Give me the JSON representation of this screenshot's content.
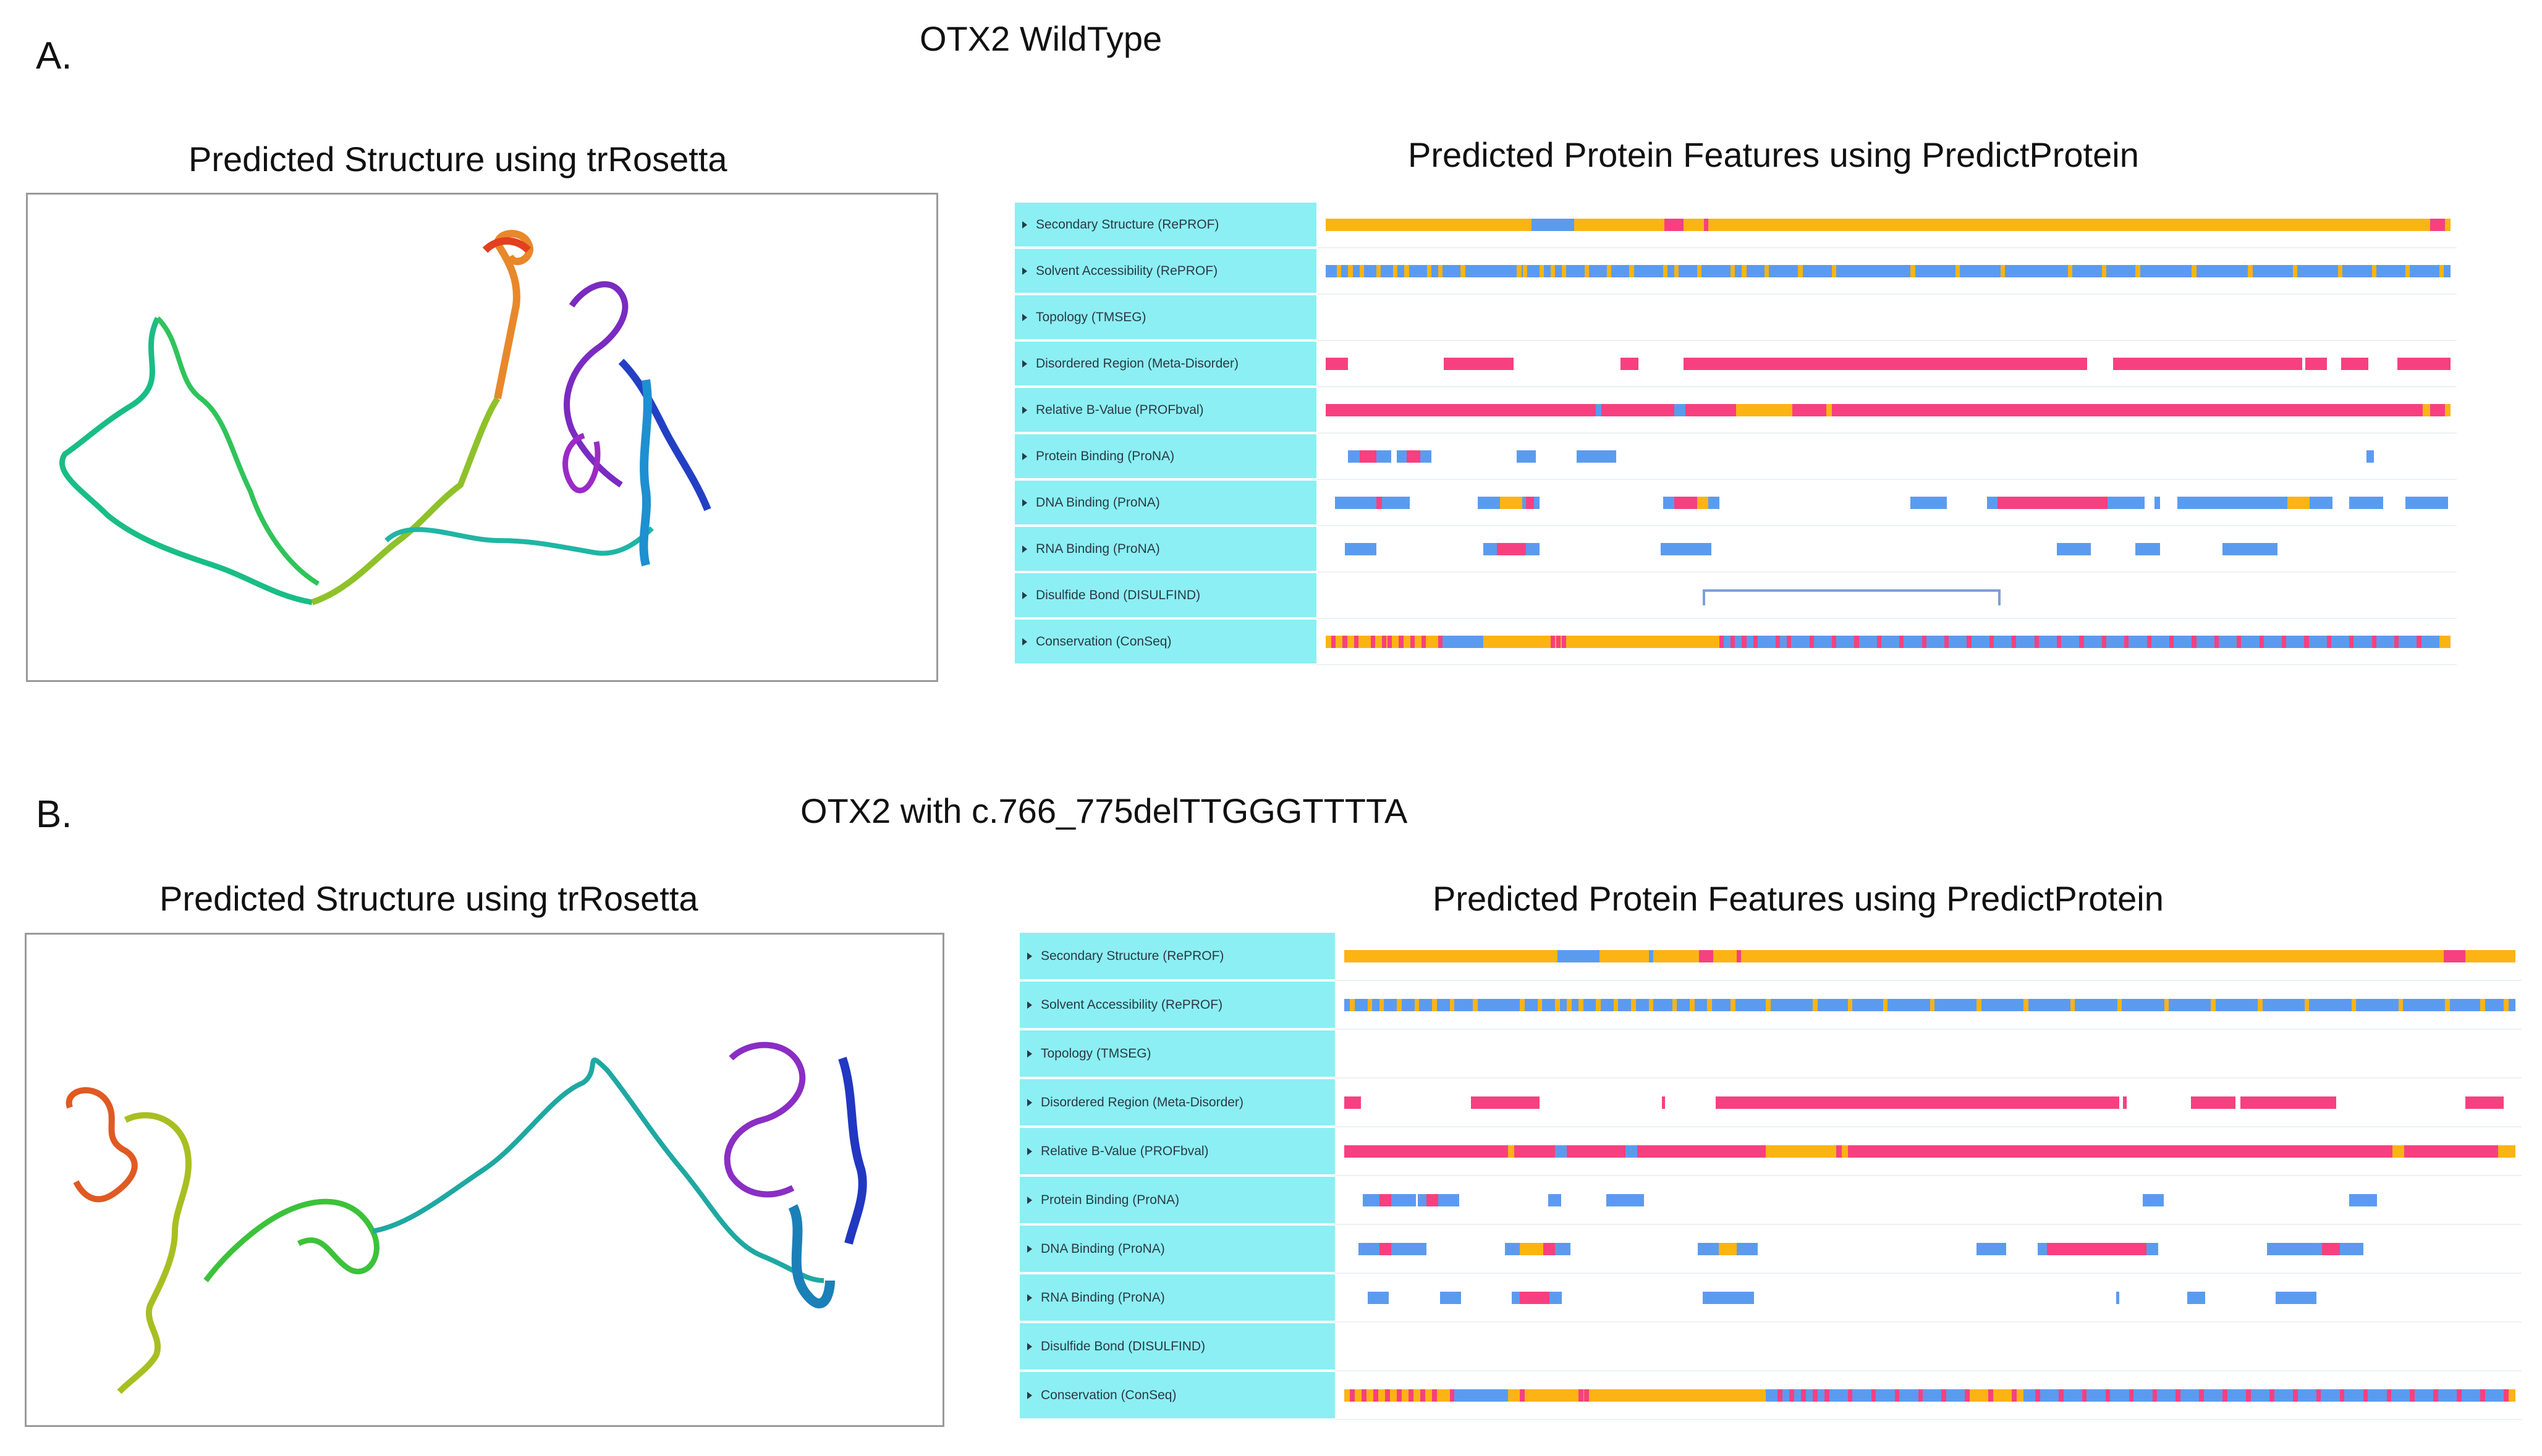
{
  "panels": [
    {
      "letter": "A.",
      "title": "OTX2 WildType",
      "structure_title": "Predicted Structure using trRosetta",
      "features_title": "Predicted Protein Features using PredictProtein",
      "tracks": [
        {
          "label": "Secondary Structure (RePROF)",
          "kind": "solid",
          "segments": [
            {
              "s": 0,
              "e": 0.183,
              "c": "orange"
            },
            {
              "s": 0.183,
              "e": 0.221,
              "c": "blue"
            },
            {
              "s": 0.221,
              "e": 0.301,
              "c": "orange"
            },
            {
              "s": 0.301,
              "e": 0.318,
              "c": "pink"
            },
            {
              "s": 0.318,
              "e": 0.336,
              "c": "orange"
            },
            {
              "s": 0.336,
              "e": 0.34,
              "c": "pink"
            },
            {
              "s": 0.34,
              "e": 0.982,
              "c": "orange"
            },
            {
              "s": 0.982,
              "e": 0.995,
              "c": "pink"
            },
            {
              "s": 0.995,
              "e": 1,
              "c": "orange"
            }
          ]
        },
        {
          "label": "Solvent Accessibility (RePROF)",
          "kind": "striped",
          "base": "blue",
          "accent": "orange",
          "stripes": [
            0.01,
            0.02,
            0.03,
            0.045,
            0.06,
            0.07,
            0.09,
            0.1,
            0.12,
            0.17,
            0.175,
            0.19,
            0.2,
            0.21,
            0.23,
            0.25,
            0.27,
            0.3,
            0.31,
            0.33,
            0.36,
            0.37,
            0.39,
            0.42,
            0.45,
            0.52,
            0.56,
            0.6,
            0.66,
            0.69,
            0.72,
            0.77,
            0.82,
            0.86,
            0.9,
            0.93,
            0.96,
            0.99
          ],
          "segments": []
        },
        {
          "label": "Topology (TMSEG)",
          "kind": "solid",
          "segments": []
        },
        {
          "label": "Disordered Region (Meta-Disorder)",
          "kind": "solid",
          "segments": [
            {
              "s": 0.0,
              "e": 0.02,
              "c": "pink"
            },
            {
              "s": 0.105,
              "e": 0.167,
              "c": "pink"
            },
            {
              "s": 0.262,
              "e": 0.278,
              "c": "pink"
            },
            {
              "s": 0.318,
              "e": 0.677,
              "c": "pink"
            },
            {
              "s": 0.7,
              "e": 0.868,
              "c": "pink"
            },
            {
              "s": 0.871,
              "e": 0.89,
              "c": "pink"
            },
            {
              "s": 0.903,
              "e": 0.927,
              "c": "pink"
            },
            {
              "s": 0.953,
              "e": 1,
              "c": "pink"
            }
          ]
        },
        {
          "label": "Relative B-Value (PROFbval)",
          "kind": "solid",
          "segments": [
            {
              "s": 0,
              "e": 0.24,
              "c": "pink"
            },
            {
              "s": 0.24,
              "e": 0.245,
              "c": "blue"
            },
            {
              "s": 0.245,
              "e": 0.31,
              "c": "pink"
            },
            {
              "s": 0.31,
              "e": 0.32,
              "c": "blue"
            },
            {
              "s": 0.32,
              "e": 0.365,
              "c": "pink"
            },
            {
              "s": 0.365,
              "e": 0.415,
              "c": "orange"
            },
            {
              "s": 0.415,
              "e": 0.445,
              "c": "pink"
            },
            {
              "s": 0.445,
              "e": 0.45,
              "c": "orange"
            },
            {
              "s": 0.45,
              "e": 0.975,
              "c": "pink"
            },
            {
              "s": 0.975,
              "e": 0.982,
              "c": "orange"
            },
            {
              "s": 0.982,
              "e": 0.995,
              "c": "pink"
            },
            {
              "s": 0.995,
              "e": 1,
              "c": "orange"
            }
          ]
        },
        {
          "label": "Protein Binding (ProNA)",
          "kind": "solid",
          "segments": [
            {
              "s": 0.02,
              "e": 0.058,
              "c": "blue"
            },
            {
              "s": 0.03,
              "e": 0.045,
              "c": "pink"
            },
            {
              "s": 0.063,
              "e": 0.094,
              "c": "blue"
            },
            {
              "s": 0.072,
              "e": 0.084,
              "c": "pink"
            },
            {
              "s": 0.17,
              "e": 0.187,
              "c": "blue"
            },
            {
              "s": 0.223,
              "e": 0.258,
              "c": "blue"
            },
            {
              "s": 0.925,
              "e": 0.932,
              "c": "blue"
            }
          ]
        },
        {
          "label": "DNA Binding (ProNA)",
          "kind": "solid",
          "segments": [
            {
              "s": 0.008,
              "e": 0.075,
              "c": "blue"
            },
            {
              "s": 0.045,
              "e": 0.05,
              "c": "pink"
            },
            {
              "s": 0.135,
              "e": 0.19,
              "c": "blue"
            },
            {
              "s": 0.155,
              "e": 0.175,
              "c": "orange"
            },
            {
              "s": 0.178,
              "e": 0.185,
              "c": "pink"
            },
            {
              "s": 0.3,
              "e": 0.35,
              "c": "blue"
            },
            {
              "s": 0.31,
              "e": 0.33,
              "c": "pink"
            },
            {
              "s": 0.33,
              "e": 0.34,
              "c": "orange"
            },
            {
              "s": 0.52,
              "e": 0.552,
              "c": "blue"
            },
            {
              "s": 0.588,
              "e": 0.728,
              "c": "blue"
            },
            {
              "s": 0.597,
              "e": 0.695,
              "c": "pink"
            },
            {
              "s": 0.737,
              "e": 0.742,
              "c": "blue"
            },
            {
              "s": 0.757,
              "e": 0.895,
              "c": "blue"
            },
            {
              "s": 0.855,
              "e": 0.875,
              "c": "orange"
            },
            {
              "s": 0.91,
              "e": 0.94,
              "c": "blue"
            },
            {
              "s": 0.96,
              "e": 0.998,
              "c": "blue"
            }
          ]
        },
        {
          "label": "RNA Binding (ProNA)",
          "kind": "solid",
          "segments": [
            {
              "s": 0.017,
              "e": 0.045,
              "c": "blue"
            },
            {
              "s": 0.14,
              "e": 0.19,
              "c": "blue"
            },
            {
              "s": 0.152,
              "e": 0.178,
              "c": "pink"
            },
            {
              "s": 0.298,
              "e": 0.343,
              "c": "blue"
            },
            {
              "s": 0.65,
              "e": 0.68,
              "c": "blue"
            },
            {
              "s": 0.72,
              "e": 0.742,
              "c": "blue"
            },
            {
              "s": 0.797,
              "e": 0.846,
              "c": "blue"
            }
          ]
        },
        {
          "label": "Disulfide Bond (DISULFIND)",
          "kind": "bracket",
          "bracket": {
            "s": 0.335,
            "e": 0.6
          },
          "segments": []
        },
        {
          "label": "Conservation (ConSeq)",
          "kind": "striped",
          "base": "orange",
          "accent": "pink",
          "accent2": "blue",
          "stripes": [
            0.005,
            0.015,
            0.025,
            0.04,
            0.05,
            0.055,
            0.065,
            0.075,
            0.085,
            0.1,
            0.2,
            0.205,
            0.21,
            0.35,
            0.36,
            0.37,
            0.38,
            0.4,
            0.41,
            0.43,
            0.45,
            0.47,
            0.49,
            0.51,
            0.53,
            0.55,
            0.57,
            0.59,
            0.61,
            0.63,
            0.65,
            0.67,
            0.69,
            0.71,
            0.73,
            0.75,
            0.77,
            0.79,
            0.81,
            0.83,
            0.85,
            0.87,
            0.89,
            0.91,
            0.93,
            0.95,
            0.97
          ],
          "blueRanges": [
            {
              "s": 0.1,
              "e": 0.14
            },
            {
              "s": 0.35,
              "e": 0.99
            }
          ],
          "segments": []
        }
      ]
    },
    {
      "letter": "B.",
      "title": "OTX2 with c.766_775delTTGGGTTTTA",
      "structure_title": "Predicted Structure using trRosetta",
      "features_title": "Predicted Protein Features using PredictProtein",
      "tracks": [
        {
          "label": "Secondary Structure (RePROF)",
          "kind": "solid",
          "segments": [
            {
              "s": 0,
              "e": 0.182,
              "c": "orange"
            },
            {
              "s": 0.182,
              "e": 0.218,
              "c": "blue"
            },
            {
              "s": 0.218,
              "e": 0.26,
              "c": "orange"
            },
            {
              "s": 0.26,
              "e": 0.264,
              "c": "blue"
            },
            {
              "s": 0.264,
              "e": 0.303,
              "c": "orange"
            },
            {
              "s": 0.303,
              "e": 0.315,
              "c": "pink"
            },
            {
              "s": 0.315,
              "e": 0.335,
              "c": "orange"
            },
            {
              "s": 0.335,
              "e": 0.339,
              "c": "pink"
            },
            {
              "s": 0.339,
              "e": 0.939,
              "c": "orange"
            },
            {
              "s": 0.939,
              "e": 0.957,
              "c": "pink"
            },
            {
              "s": 0.957,
              "e": 1,
              "c": "orange"
            }
          ]
        },
        {
          "label": "Solvent Accessibility (RePROF)",
          "kind": "striped",
          "base": "blue",
          "accent": "orange",
          "stripes": [
            0.005,
            0.02,
            0.03,
            0.045,
            0.06,
            0.075,
            0.09,
            0.11,
            0.15,
            0.165,
            0.18,
            0.19,
            0.2,
            0.215,
            0.23,
            0.245,
            0.26,
            0.28,
            0.295,
            0.31,
            0.33,
            0.36,
            0.4,
            0.43,
            0.46,
            0.5,
            0.54,
            0.58,
            0.62,
            0.66,
            0.7,
            0.74,
            0.78,
            0.82,
            0.86,
            0.9,
            0.94,
            0.97,
            0.99
          ],
          "segments": []
        },
        {
          "label": "Topology (TMSEG)",
          "kind": "solid",
          "segments": []
        },
        {
          "label": "Disordered Region (Meta-Disorder)",
          "kind": "solid",
          "segments": [
            {
              "s": 0.0,
              "e": 0.014,
              "c": "pink"
            },
            {
              "s": 0.108,
              "e": 0.167,
              "c": "pink"
            },
            {
              "s": 0.271,
              "e": 0.274,
              "c": "pink"
            },
            {
              "s": 0.317,
              "e": 0.662,
              "c": "pink"
            },
            {
              "s": 0.665,
              "e": 0.668,
              "c": "pink"
            },
            {
              "s": 0.723,
              "e": 0.761,
              "c": "pink"
            },
            {
              "s": 0.765,
              "e": 0.847,
              "c": "pink"
            },
            {
              "s": 0.957,
              "e": 0.99,
              "c": "pink"
            }
          ]
        },
        {
          "label": "Relative B-Value (PROFbval)",
          "kind": "solid",
          "segments": [
            {
              "s": 0,
              "e": 0.14,
              "c": "pink"
            },
            {
              "s": 0.14,
              "e": 0.145,
              "c": "orange"
            },
            {
              "s": 0.145,
              "e": 0.18,
              "c": "pink"
            },
            {
              "s": 0.18,
              "e": 0.19,
              "c": "blue"
            },
            {
              "s": 0.19,
              "e": 0.24,
              "c": "pink"
            },
            {
              "s": 0.24,
              "e": 0.25,
              "c": "blue"
            },
            {
              "s": 0.25,
              "e": 0.36,
              "c": "pink"
            },
            {
              "s": 0.36,
              "e": 0.42,
              "c": "orange"
            },
            {
              "s": 0.42,
              "e": 0.425,
              "c": "pink"
            },
            {
              "s": 0.425,
              "e": 0.43,
              "c": "orange"
            },
            {
              "s": 0.43,
              "e": 0.895,
              "c": "pink"
            },
            {
              "s": 0.895,
              "e": 0.905,
              "c": "orange"
            },
            {
              "s": 0.905,
              "e": 0.985,
              "c": "pink"
            },
            {
              "s": 0.985,
              "e": 1,
              "c": "orange"
            }
          ]
        },
        {
          "label": "Protein Binding (ProNA)",
          "kind": "solid",
          "segments": [
            {
              "s": 0.016,
              "e": 0.061,
              "c": "blue"
            },
            {
              "s": 0.03,
              "e": 0.04,
              "c": "pink"
            },
            {
              "s": 0.063,
              "e": 0.098,
              "c": "blue"
            },
            {
              "s": 0.07,
              "e": 0.08,
              "c": "pink"
            },
            {
              "s": 0.174,
              "e": 0.185,
              "c": "blue"
            },
            {
              "s": 0.224,
              "e": 0.256,
              "c": "blue"
            },
            {
              "s": 0.682,
              "e": 0.7,
              "c": "blue"
            },
            {
              "s": 0.858,
              "e": 0.882,
              "c": "blue"
            }
          ]
        },
        {
          "label": "DNA Binding (ProNA)",
          "kind": "solid",
          "segments": [
            {
              "s": 0.012,
              "e": 0.07,
              "c": "blue"
            },
            {
              "s": 0.03,
              "e": 0.04,
              "c": "pink"
            },
            {
              "s": 0.137,
              "e": 0.193,
              "c": "blue"
            },
            {
              "s": 0.15,
              "e": 0.17,
              "c": "orange"
            },
            {
              "s": 0.17,
              "e": 0.18,
              "c": "pink"
            },
            {
              "s": 0.302,
              "e": 0.353,
              "c": "blue"
            },
            {
              "s": 0.32,
              "e": 0.335,
              "c": "orange"
            },
            {
              "s": 0.54,
              "e": 0.565,
              "c": "blue"
            },
            {
              "s": 0.592,
              "e": 0.695,
              "c": "blue"
            },
            {
              "s": 0.6,
              "e": 0.685,
              "c": "pink"
            },
            {
              "s": 0.788,
              "e": 0.87,
              "c": "blue"
            },
            {
              "s": 0.835,
              "e": 0.85,
              "c": "pink"
            }
          ]
        },
        {
          "label": "RNA Binding (ProNA)",
          "kind": "solid",
          "segments": [
            {
              "s": 0.02,
              "e": 0.038,
              "c": "blue"
            },
            {
              "s": 0.082,
              "e": 0.1,
              "c": "blue"
            },
            {
              "s": 0.143,
              "e": 0.186,
              "c": "blue"
            },
            {
              "s": 0.15,
              "e": 0.175,
              "c": "pink"
            },
            {
              "s": 0.306,
              "e": 0.35,
              "c": "blue"
            },
            {
              "s": 0.659,
              "e": 0.662,
              "c": "blue"
            },
            {
              "s": 0.72,
              "e": 0.735,
              "c": "blue"
            },
            {
              "s": 0.795,
              "e": 0.83,
              "c": "blue"
            }
          ]
        },
        {
          "label": "Disulfide Bond (DISULFIND)",
          "kind": "solid",
          "segments": []
        },
        {
          "label": "Conservation (ConSeq)",
          "kind": "striped",
          "base": "orange",
          "accent": "pink",
          "accent2": "blue",
          "stripes": [
            0.005,
            0.015,
            0.025,
            0.035,
            0.045,
            0.055,
            0.065,
            0.075,
            0.09,
            0.15,
            0.2,
            0.205,
            0.37,
            0.38,
            0.39,
            0.4,
            0.41,
            0.43,
            0.45,
            0.47,
            0.49,
            0.51,
            0.53,
            0.55,
            0.57,
            0.59,
            0.61,
            0.63,
            0.65,
            0.67,
            0.69,
            0.71,
            0.73,
            0.75,
            0.77,
            0.79,
            0.81,
            0.83,
            0.85,
            0.87,
            0.89,
            0.91,
            0.93,
            0.95,
            0.97,
            0.99
          ],
          "blueRanges": [
            {
              "s": 0.09,
              "e": 0.14
            },
            {
              "s": 0.36,
              "e": 0.53
            },
            {
              "s": 0.58,
              "e": 0.99
            }
          ],
          "segments": []
        }
      ]
    }
  ],
  "colors": {
    "orange": "#fbb414",
    "blue": "#5b9bef",
    "pink": "#f7407f",
    "label_bg": "#8ceff3",
    "bracket": "#7f9ed6"
  }
}
